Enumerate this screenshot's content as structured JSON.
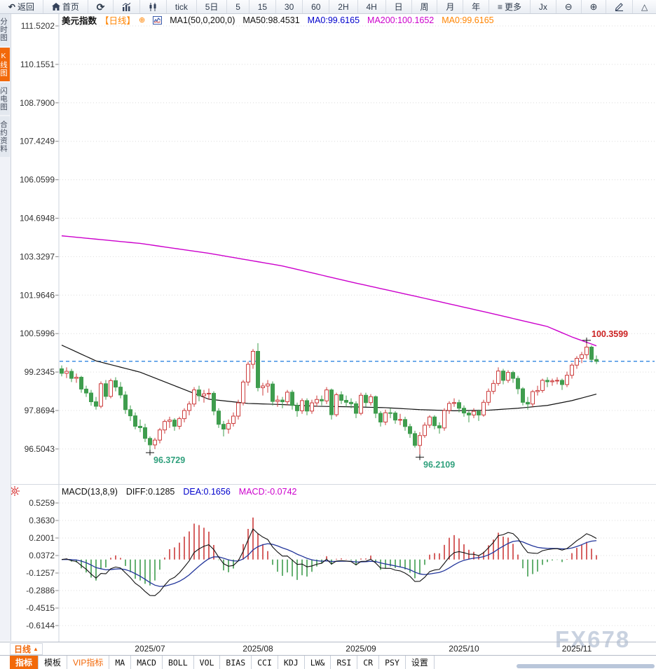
{
  "toolbar": {
    "items": [
      {
        "id": "back",
        "icon": "back-arrow",
        "label": "返回"
      },
      {
        "id": "home",
        "icon": "home",
        "label": "首页"
      },
      {
        "id": "refresh",
        "icon": "refresh",
        "label": ""
      },
      {
        "id": "market-overview",
        "icon": "bars-chart",
        "label": ""
      },
      {
        "id": "candle-view",
        "icon": "candles",
        "label": ""
      },
      {
        "id": "tick",
        "label": "tick"
      },
      {
        "id": "5day",
        "label": "5日"
      },
      {
        "id": "m5",
        "label": "5"
      },
      {
        "id": "m15",
        "label": "15"
      },
      {
        "id": "m30",
        "label": "30"
      },
      {
        "id": "m60",
        "label": "60"
      },
      {
        "id": "h2",
        "label": "2H"
      },
      {
        "id": "h4",
        "label": "4H"
      },
      {
        "id": "day",
        "label": "日"
      },
      {
        "id": "week",
        "label": "周"
      },
      {
        "id": "month",
        "label": "月"
      },
      {
        "id": "year",
        "label": "年"
      },
      {
        "id": "more",
        "icon": "menu",
        "label": "更多"
      },
      {
        "id": "formula",
        "label": "Jx"
      },
      {
        "id": "zoom-out",
        "icon": "zoom-out",
        "label": ""
      },
      {
        "id": "zoom-in",
        "icon": "zoom-in",
        "label": ""
      },
      {
        "id": "draw",
        "icon": "pencil",
        "label": ""
      },
      {
        "id": "shapes",
        "icon": "triangle",
        "label": ""
      }
    ]
  },
  "sidebar": {
    "tabs": [
      {
        "id": "time-chart",
        "label": "分时图",
        "active": false
      },
      {
        "id": "kline-chart",
        "label": "K线图",
        "active": true
      },
      {
        "id": "lightning-chart",
        "label": "闪电图",
        "active": false
      },
      {
        "id": "contract-info",
        "label": "合约资料",
        "active": false
      }
    ]
  },
  "chart_header": {
    "symbol": "美元指数",
    "period_tag": "【日线】",
    "add_icon": "⊕",
    "ma_group": "MA1(50,0,200,0)",
    "ma50": "MA50:98.4531",
    "ma0_blue": "MA0:99.6165",
    "ma200": "MA200:100.1652",
    "ma0_orange": "MA0:99.6165"
  },
  "macd_header": {
    "indicator": "MACD(13,8,9)",
    "diff": "DIFF:0.1285",
    "dea": "DEA:0.1656",
    "macd": "MACD:-0.0742"
  },
  "bottom": {
    "period_label": "日线",
    "period_arrow": "▲",
    "watermark": "FX678"
  },
  "bottom_tabs": {
    "items": [
      {
        "id": "indicator",
        "label": "指标",
        "active": true,
        "latin": false,
        "vip": false
      },
      {
        "id": "template",
        "label": "模板",
        "active": false,
        "latin": false,
        "vip": false
      },
      {
        "id": "vip-indicator",
        "label": "VIP指标",
        "active": false,
        "latin": false,
        "vip": true
      },
      {
        "id": "ma",
        "label": "MA",
        "latin": true
      },
      {
        "id": "macd",
        "label": "MACD",
        "latin": true
      },
      {
        "id": "boll",
        "label": "BOLL",
        "latin": true
      },
      {
        "id": "vol",
        "label": "VOL",
        "latin": true
      },
      {
        "id": "bias",
        "label": "BIAS",
        "latin": true
      },
      {
        "id": "cci",
        "label": "CCI",
        "latin": true
      },
      {
        "id": "kdj",
        "label": "KDJ",
        "latin": true
      },
      {
        "id": "lwr",
        "label": "LW&",
        "latin": true
      },
      {
        "id": "rsi",
        "label": "RSI",
        "latin": true
      },
      {
        "id": "cr",
        "label": "CR",
        "latin": true
      },
      {
        "id": "psy",
        "label": "PSY",
        "latin": true
      },
      {
        "id": "settings",
        "label": "设置",
        "latin": false
      }
    ]
  },
  "colors": {
    "up": "#cc3b3b",
    "down": "#3f9d4e",
    "ma50_line": "#111111",
    "ma200_line": "#cc00cc",
    "diff_line": "#111111",
    "dea_line": "#23369b",
    "price_line": "#1d7bdd",
    "grid": "#dcdcdc",
    "annotation_low": "#2fa07c",
    "annotation_high": "#cc2222",
    "accent_orange": "#f2690a",
    "watermark": "#c9d2e0"
  },
  "chart_data": {
    "type": "candlestick",
    "symbol": "美元指数",
    "period": "日线",
    "current_price": 99.6165,
    "y_ticks_main": [
      "111.5202",
      "110.1551",
      "108.7900",
      "107.4249",
      "106.0599",
      "104.6948",
      "103.3297",
      "101.9646",
      "100.5996",
      "99.2345",
      "97.8694",
      "96.5043"
    ],
    "y_ticks_macd": [
      "0.5259",
      "0.3630",
      "0.2001",
      "0.0372",
      "-0.1257",
      "-0.2886",
      "-0.4515",
      "-0.6144"
    ],
    "months": [
      {
        "label": "2025/07",
        "index": 18
      },
      {
        "label": "2025/08",
        "index": 40
      },
      {
        "label": "2025/09",
        "index": 61
      },
      {
        "label": "2025/10",
        "index": 82
      },
      {
        "label": "2025/11",
        "index": 105
      }
    ],
    "annotations": [
      {
        "label": "100.3599",
        "price": 100.3599,
        "index": 107,
        "type": "high"
      },
      {
        "label": "96.3729",
        "price": 96.3729,
        "index": 18,
        "type": "low"
      },
      {
        "label": "96.2109",
        "price": 96.2109,
        "index": 73,
        "type": "low"
      }
    ],
    "ma50_points": [
      [
        0,
        100.19
      ],
      [
        7,
        99.63
      ],
      [
        16,
        99.23
      ],
      [
        23,
        98.75
      ],
      [
        30,
        98.27
      ],
      [
        38,
        98.12
      ],
      [
        45,
        98.08
      ],
      [
        52,
        98.02
      ],
      [
        59,
        98.0
      ],
      [
        66,
        97.97
      ],
      [
        73,
        97.9
      ],
      [
        80,
        97.86
      ],
      [
        87,
        97.88
      ],
      [
        93,
        97.95
      ],
      [
        99,
        98.05
      ],
      [
        104,
        98.22
      ],
      [
        109,
        98.4531
      ]
    ],
    "ma200_points": [
      [
        0,
        104.07
      ],
      [
        16,
        103.8
      ],
      [
        30,
        103.45
      ],
      [
        45,
        103.0
      ],
      [
        59,
        102.43
      ],
      [
        73,
        101.89
      ],
      [
        87,
        101.34
      ],
      [
        99,
        100.85
      ],
      [
        104,
        100.48
      ],
      [
        109,
        100.1652
      ]
    ],
    "macd": {
      "params": "(13,8,9)",
      "diff": 0.1285,
      "dea": 0.1656,
      "bar": -0.0742,
      "short": 8,
      "long": 13,
      "mid": 9
    },
    "candles": [
      [
        99.35,
        99.47,
        99.08,
        99.19
      ],
      [
        99.19,
        99.4,
        99.02,
        99.26
      ],
      [
        99.26,
        99.35,
        98.88,
        99.01
      ],
      [
        99.01,
        99.18,
        98.85,
        99.05
      ],
      [
        99.05,
        99.1,
        98.5,
        98.63
      ],
      [
        98.63,
        98.75,
        98.35,
        98.49
      ],
      [
        98.49,
        98.6,
        98.04,
        98.18
      ],
      [
        98.18,
        98.35,
        97.9,
        98.02
      ],
      [
        98.02,
        98.9,
        97.95,
        98.82
      ],
      [
        98.82,
        98.95,
        98.25,
        98.37
      ],
      [
        98.37,
        99.0,
        98.3,
        98.93
      ],
      [
        98.93,
        99.05,
        98.55,
        98.7
      ],
      [
        98.7,
        98.88,
        98.3,
        98.42
      ],
      [
        98.42,
        98.55,
        97.75,
        97.9
      ],
      [
        97.9,
        98.05,
        97.5,
        97.68
      ],
      [
        97.68,
        97.8,
        97.2,
        97.31
      ],
      [
        97.31,
        97.55,
        97.1,
        97.26
      ],
      [
        97.26,
        97.4,
        96.75,
        96.88
      ],
      [
        96.88,
        96.95,
        96.3729,
        96.65
      ],
      [
        96.65,
        96.9,
        96.5,
        96.82
      ],
      [
        96.82,
        97.25,
        96.7,
        97.18
      ],
      [
        97.18,
        97.55,
        97.05,
        97.48
      ],
      [
        97.48,
        97.65,
        97.25,
        97.53
      ],
      [
        97.53,
        97.6,
        97.15,
        97.31
      ],
      [
        97.31,
        97.65,
        97.2,
        97.58
      ],
      [
        97.58,
        97.95,
        97.45,
        97.87
      ],
      [
        97.87,
        98.2,
        97.7,
        98.1
      ],
      [
        98.1,
        98.7,
        98.0,
        98.6
      ],
      [
        98.6,
        98.75,
        98.2,
        98.39
      ],
      [
        98.39,
        98.6,
        98.15,
        98.46
      ],
      [
        98.46,
        98.65,
        98.25,
        98.48
      ],
      [
        98.48,
        98.55,
        97.7,
        97.85
      ],
      [
        97.85,
        97.95,
        97.25,
        97.38
      ],
      [
        97.38,
        97.5,
        96.95,
        97.21
      ],
      [
        97.21,
        97.55,
        97.05,
        97.41
      ],
      [
        97.41,
        97.8,
        97.3,
        97.67
      ],
      [
        97.67,
        98.25,
        97.55,
        98.14
      ],
      [
        98.14,
        98.95,
        98.05,
        98.88
      ],
      [
        98.88,
        99.6,
        98.75,
        99.51
      ],
      [
        99.51,
        100.05,
        99.35,
        99.97
      ],
      [
        99.97,
        100.26,
        98.55,
        98.68
      ],
      [
        98.68,
        98.85,
        98.4,
        98.74
      ],
      [
        98.74,
        98.95,
        98.5,
        98.81
      ],
      [
        98.81,
        98.9,
        98.05,
        98.19
      ],
      [
        98.19,
        98.4,
        98.0,
        98.24
      ],
      [
        98.24,
        98.35,
        97.95,
        98.18
      ],
      [
        98.18,
        98.6,
        98.05,
        98.52
      ],
      [
        98.52,
        98.6,
        97.9,
        98.05
      ],
      [
        98.05,
        98.15,
        97.65,
        97.86
      ],
      [
        97.86,
        98.3,
        97.75,
        98.22
      ],
      [
        98.22,
        98.3,
        97.7,
        97.85
      ],
      [
        97.85,
        98.25,
        97.75,
        98.14
      ],
      [
        98.14,
        98.4,
        98.0,
        98.26
      ],
      [
        98.26,
        98.4,
        98.05,
        98.21
      ],
      [
        98.21,
        98.7,
        98.1,
        98.6
      ],
      [
        98.6,
        98.65,
        97.55,
        97.72
      ],
      [
        97.72,
        98.5,
        97.65,
        98.43
      ],
      [
        98.43,
        98.55,
        98.1,
        98.23
      ],
      [
        98.23,
        98.4,
        98.0,
        98.16
      ],
      [
        98.16,
        98.3,
        97.95,
        98.11
      ],
      [
        98.11,
        98.2,
        97.6,
        97.77
      ],
      [
        97.77,
        98.5,
        97.7,
        98.41
      ],
      [
        98.41,
        98.5,
        98.0,
        98.15
      ],
      [
        98.15,
        98.45,
        98.05,
        98.36
      ],
      [
        98.36,
        98.4,
        97.6,
        97.77
      ],
      [
        97.77,
        97.85,
        97.3,
        97.46
      ],
      [
        97.46,
        97.9,
        97.35,
        97.79
      ],
      [
        97.79,
        97.95,
        97.6,
        97.78
      ],
      [
        97.78,
        97.85,
        97.4,
        97.53
      ],
      [
        97.53,
        97.75,
        97.35,
        97.55
      ],
      [
        97.55,
        97.65,
        97.15,
        97.3
      ],
      [
        97.3,
        97.4,
        96.9,
        97.05
      ],
      [
        97.05,
        97.15,
        96.55,
        96.63
      ],
      [
        96.63,
        97.1,
        96.2109,
        96.98
      ],
      [
        96.98,
        97.45,
        96.9,
        97.35
      ],
      [
        97.35,
        97.7,
        97.25,
        97.64
      ],
      [
        97.64,
        97.7,
        97.2,
        97.33
      ],
      [
        97.33,
        97.45,
        97.05,
        97.25
      ],
      [
        97.25,
        97.95,
        97.15,
        97.87
      ],
      [
        97.87,
        98.2,
        97.75,
        98.12
      ],
      [
        98.12,
        98.3,
        98.0,
        98.15
      ],
      [
        98.15,
        98.25,
        97.8,
        97.95
      ],
      [
        97.95,
        98.05,
        97.65,
        97.78
      ],
      [
        97.78,
        97.85,
        97.45,
        97.71
      ],
      [
        97.71,
        97.95,
        97.6,
        97.84
      ],
      [
        97.84,
        97.9,
        97.5,
        97.71
      ],
      [
        97.71,
        98.25,
        97.65,
        98.16
      ],
      [
        98.16,
        98.65,
        98.05,
        98.55
      ],
      [
        98.55,
        98.95,
        98.45,
        98.83
      ],
      [
        98.83,
        99.4,
        98.75,
        99.27
      ],
      [
        99.27,
        99.35,
        98.8,
        98.94
      ],
      [
        98.94,
        99.3,
        98.85,
        99.22
      ],
      [
        99.22,
        99.28,
        98.85,
        99.01
      ],
      [
        99.01,
        99.1,
        98.45,
        98.64
      ],
      [
        98.64,
        98.7,
        98.05,
        98.16
      ],
      [
        98.16,
        98.35,
        97.9,
        98.1
      ],
      [
        98.1,
        98.6,
        98.0,
        98.54
      ],
      [
        98.54,
        98.75,
        98.4,
        98.58
      ],
      [
        98.58,
        99.0,
        98.5,
        98.94
      ],
      [
        98.94,
        99.05,
        98.7,
        98.89
      ],
      [
        98.89,
        99.0,
        98.75,
        98.92
      ],
      [
        98.92,
        99.05,
        98.8,
        98.94
      ],
      [
        98.94,
        99.0,
        98.6,
        98.79
      ],
      [
        98.79,
        99.25,
        98.7,
        99.12
      ],
      [
        99.12,
        99.55,
        99.0,
        99.48
      ],
      [
        99.48,
        99.8,
        99.35,
        99.72
      ],
      [
        99.72,
        99.95,
        99.55,
        99.85
      ],
      [
        99.85,
        100.3599,
        99.7,
        100.12
      ],
      [
        100.12,
        100.18,
        99.58,
        99.68
      ],
      [
        99.68,
        99.82,
        99.52,
        99.6165
      ]
    ]
  }
}
